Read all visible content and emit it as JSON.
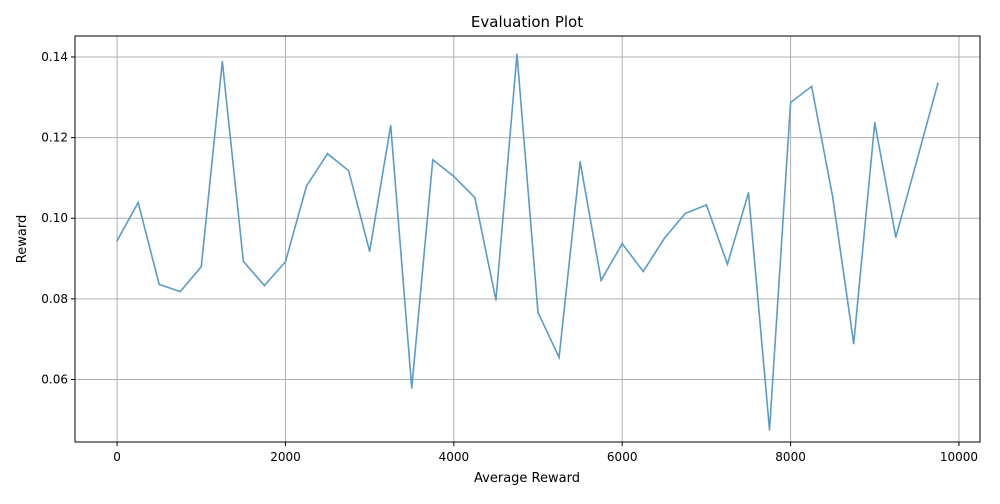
{
  "chart_data": {
    "type": "line",
    "title": "Evaluation Plot",
    "xlabel": "Average Reward",
    "ylabel": "Reward",
    "xlim": [
      -500,
      10250
    ],
    "ylim": [
      0.0445,
      0.1452
    ],
    "x_ticks": [
      0,
      2000,
      4000,
      6000,
      8000,
      10000
    ],
    "y_ticks": [
      0.06,
      0.08,
      0.1,
      0.12,
      0.14
    ],
    "x_tick_labels": [
      "0",
      "2000",
      "4000",
      "6000",
      "8000",
      "10000"
    ],
    "y_tick_labels": [
      "0.06",
      "0.08",
      "0.10",
      "0.12",
      "0.14"
    ],
    "grid": true,
    "legend": "none",
    "series": [
      {
        "color": "#5b9bc6",
        "x": [
          0,
          250,
          500,
          750,
          1000,
          1250,
          1500,
          1750,
          2000,
          2250,
          2500,
          2750,
          3000,
          3250,
          3500,
          3750,
          4000,
          4250,
          4500,
          4750,
          5000,
          5250,
          5500,
          5750,
          6000,
          6250,
          6500,
          6750,
          7000,
          7250,
          7500,
          7750,
          8000,
          8250,
          8500,
          8750,
          9000,
          9250,
          9500,
          9750
        ],
        "values": [
          0.0944,
          0.1039,
          0.0836,
          0.0818,
          0.088,
          0.1389,
          0.0893,
          0.0833,
          0.0892,
          0.108,
          0.116,
          0.1118,
          0.0918,
          0.123,
          0.0579,
          0.1145,
          0.1104,
          0.1051,
          0.0797,
          0.1407,
          0.0766,
          0.0655,
          0.114,
          0.0846,
          0.0937,
          0.0868,
          0.095,
          0.1012,
          0.1033,
          0.0886,
          0.1063,
          0.0475,
          0.1287,
          0.1327,
          0.1053,
          0.0689,
          0.1237,
          0.0953,
          0.1143,
          0.1335
        ]
      }
    ]
  },
  "colors": {
    "line": "#5b9bc6",
    "grid": "#b0b0b0",
    "axes": "#000000"
  }
}
